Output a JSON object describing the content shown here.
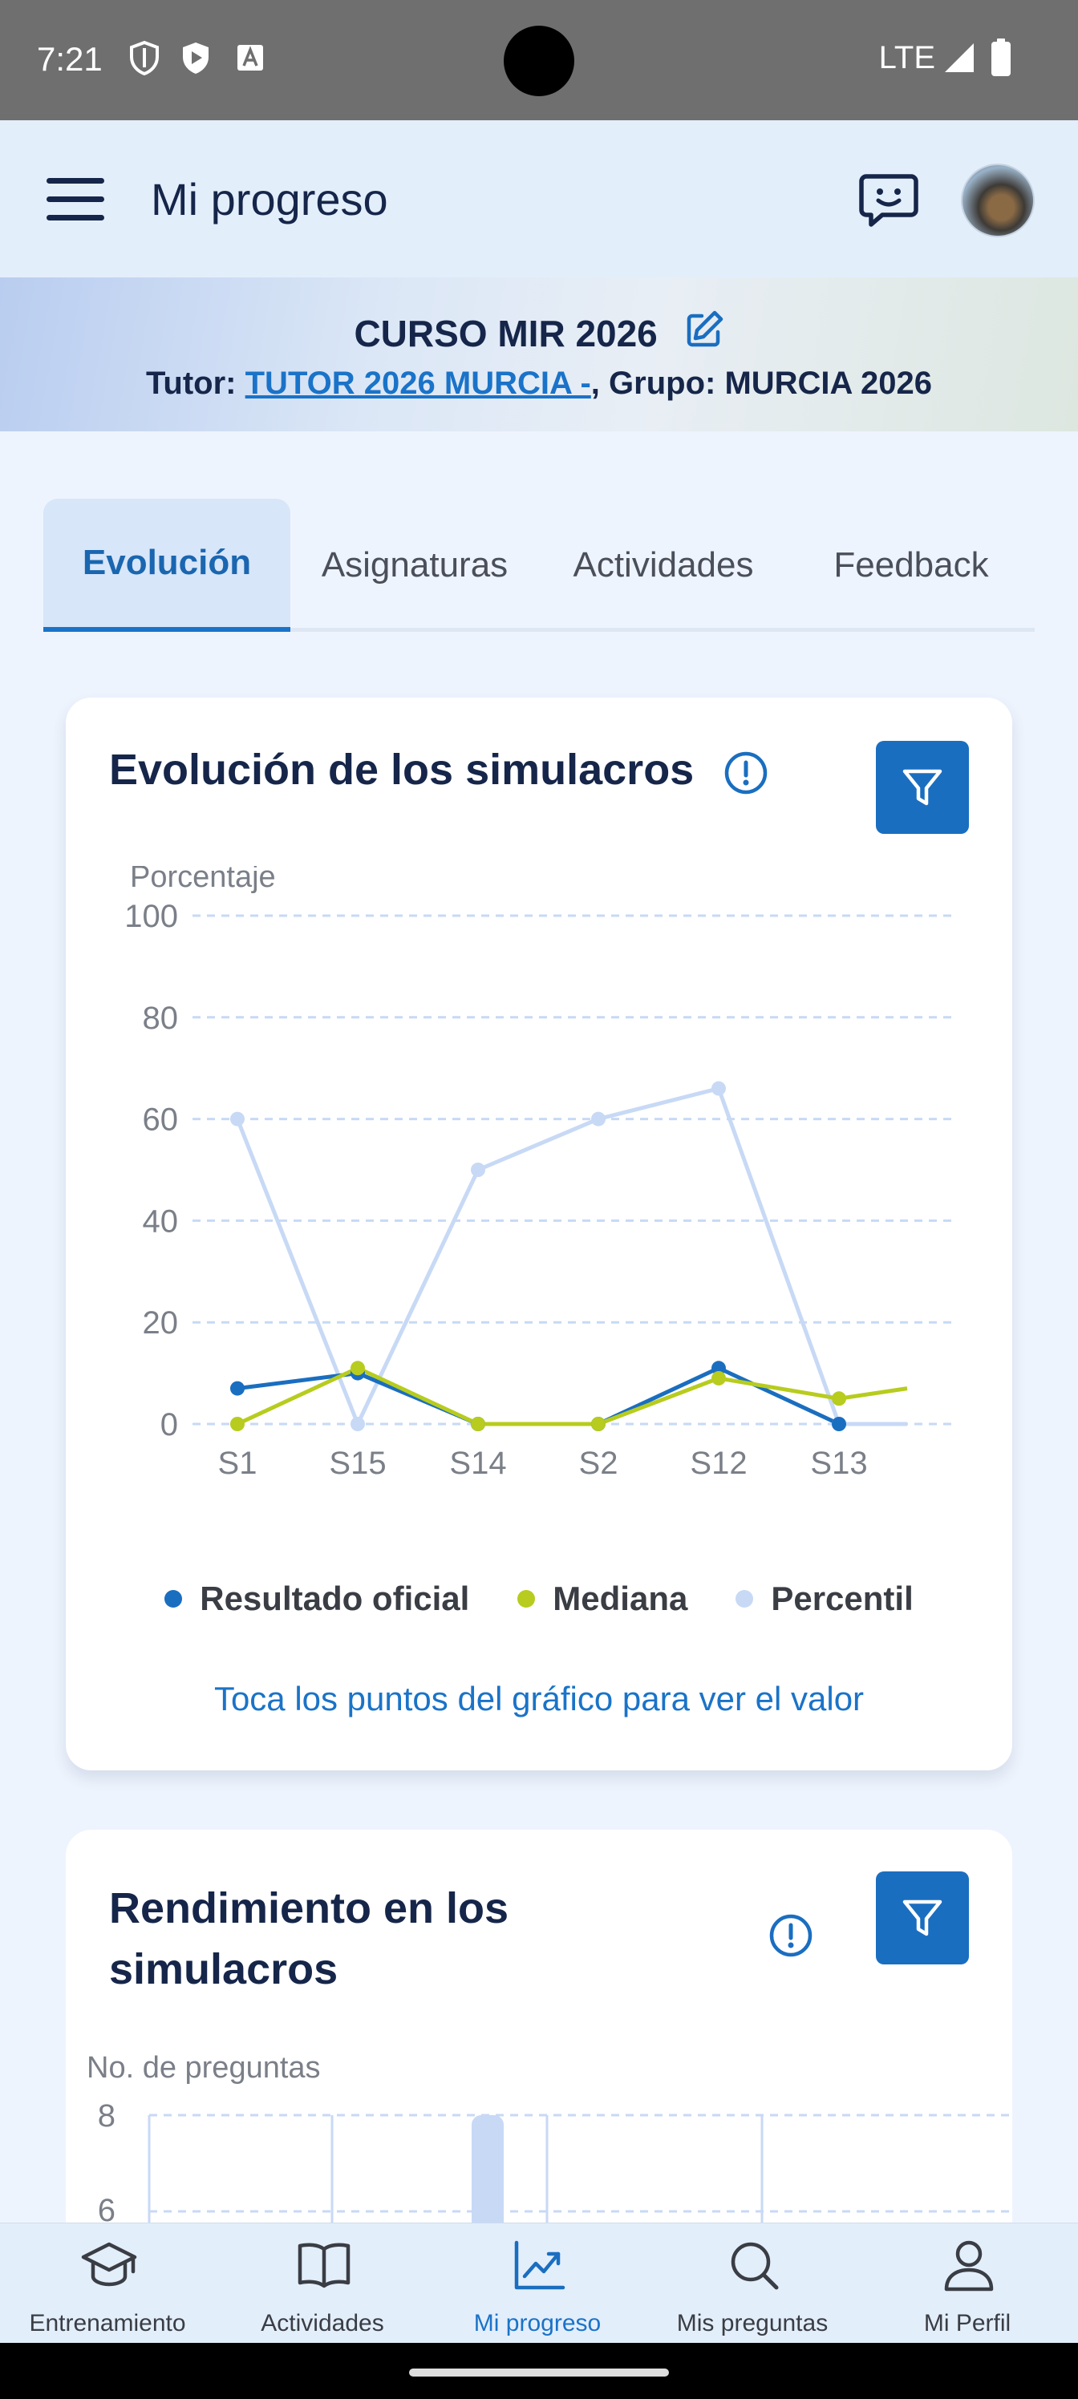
{
  "status_bar": {
    "time": "7:21",
    "network": "LTE"
  },
  "app_bar": {
    "title": "Mi progreso"
  },
  "banner": {
    "course": "CURSO MIR 2026",
    "tutor_label": "Tutor:",
    "tutor_name": "TUTOR 2026 MURCIA -",
    "group_text": ", Grupo: MURCIA 2026"
  },
  "tabs": [
    {
      "label": "Evolución",
      "active": true
    },
    {
      "label": "Asignaturas",
      "active": false
    },
    {
      "label": "Actividades",
      "active": false
    },
    {
      "label": "Feedback",
      "active": false
    }
  ],
  "card1": {
    "title": "Evolución de los simulacros",
    "legend": [
      {
        "label": "Resultado oficial",
        "color": "#1a6ec0"
      },
      {
        "label": "Mediana",
        "color": "#b7cc1e"
      },
      {
        "label": "Percentil",
        "color": "#c7d9f5"
      }
    ],
    "hint": "Toca los puntos del gráfico para ver el valor"
  },
  "card2": {
    "title_line1": "Rendimiento en los",
    "title_line2": "simulacros",
    "y_label": "No. de preguntas",
    "y_ticks": [
      "8",
      "6"
    ]
  },
  "chart_data": {
    "type": "line",
    "ylabel": "Porcentaje",
    "ylim": [
      0,
      100
    ],
    "y_ticks": [
      "100",
      "80",
      "60",
      "40",
      "20",
      "0"
    ],
    "categories": [
      "S1",
      "S15",
      "S14",
      "S2",
      "S12",
      "S13"
    ],
    "grid": true,
    "legend_position": "bottom",
    "series": [
      {
        "name": "Resultado oficial",
        "color": "#1a6ec0",
        "values": [
          7,
          10,
          0,
          0,
          11,
          0
        ]
      },
      {
        "name": "Mediana",
        "color": "#b7cc1e",
        "values": [
          0,
          11,
          0,
          0,
          9,
          5
        ],
        "tail": 7
      },
      {
        "name": "Percentil",
        "color": "#c7d9f5",
        "values": [
          60,
          0,
          50,
          60,
          66,
          0
        ],
        "tail": 0
      }
    ]
  },
  "bottom_nav": [
    {
      "label": "Entrenamiento",
      "icon": "graduation-cap-icon",
      "active": false
    },
    {
      "label": "Actividades",
      "icon": "book-icon",
      "active": false
    },
    {
      "label": "Mi progreso",
      "icon": "trending-chart-icon",
      "active": true
    },
    {
      "label": "Mis preguntas",
      "icon": "search-icon",
      "active": false
    },
    {
      "label": "Mi Perfil",
      "icon": "person-icon",
      "active": false
    }
  ]
}
